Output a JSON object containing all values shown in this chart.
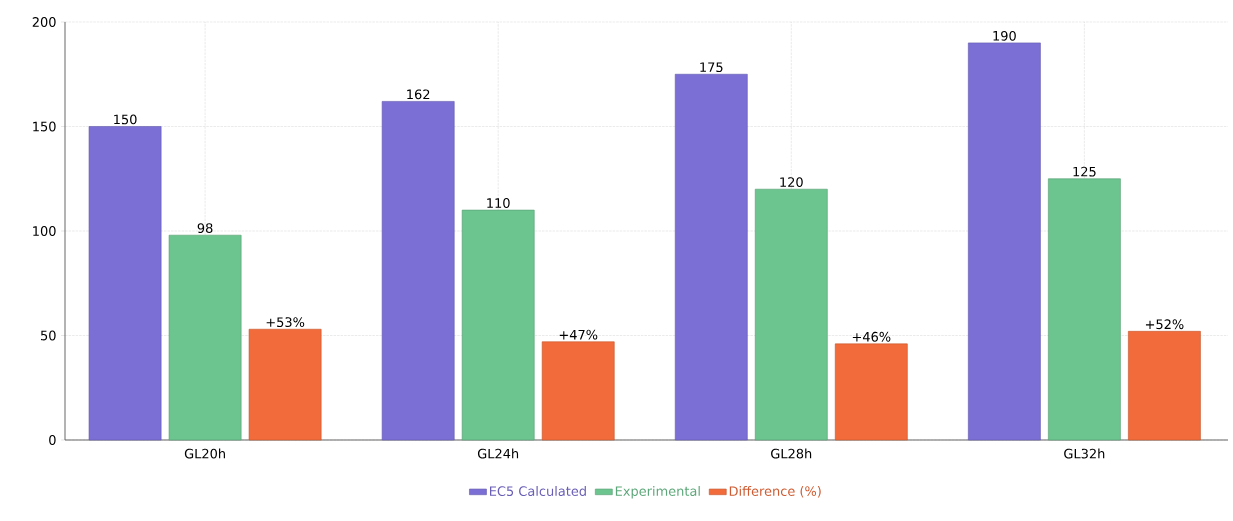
{
  "chart_data": {
    "type": "bar",
    "categories": [
      "GL20h",
      "GL24h",
      "GL28h",
      "GL32h"
    ],
    "series": [
      {
        "name": "EC5 Calculated",
        "color": "#7b6fd6",
        "values": [
          150,
          162,
          175,
          190
        ],
        "value_labels": [
          "150",
          "162",
          "175",
          "190"
        ]
      },
      {
        "name": "Experimental",
        "color": "#6cc48e",
        "values": [
          98,
          110,
          120,
          125
        ],
        "value_labels": [
          "98",
          "110",
          "120",
          "125"
        ]
      },
      {
        "name": "Difference (%)",
        "color": "#f26b3a",
        "values": [
          53,
          47,
          46,
          52
        ],
        "value_labels": [
          "+53%",
          "+47%",
          "+46%",
          "+52%"
        ]
      }
    ],
    "ylim": [
      0,
      200
    ],
    "yticks": [
      0,
      50,
      100,
      150,
      200
    ],
    "grid": true,
    "legend": "bottom"
  }
}
